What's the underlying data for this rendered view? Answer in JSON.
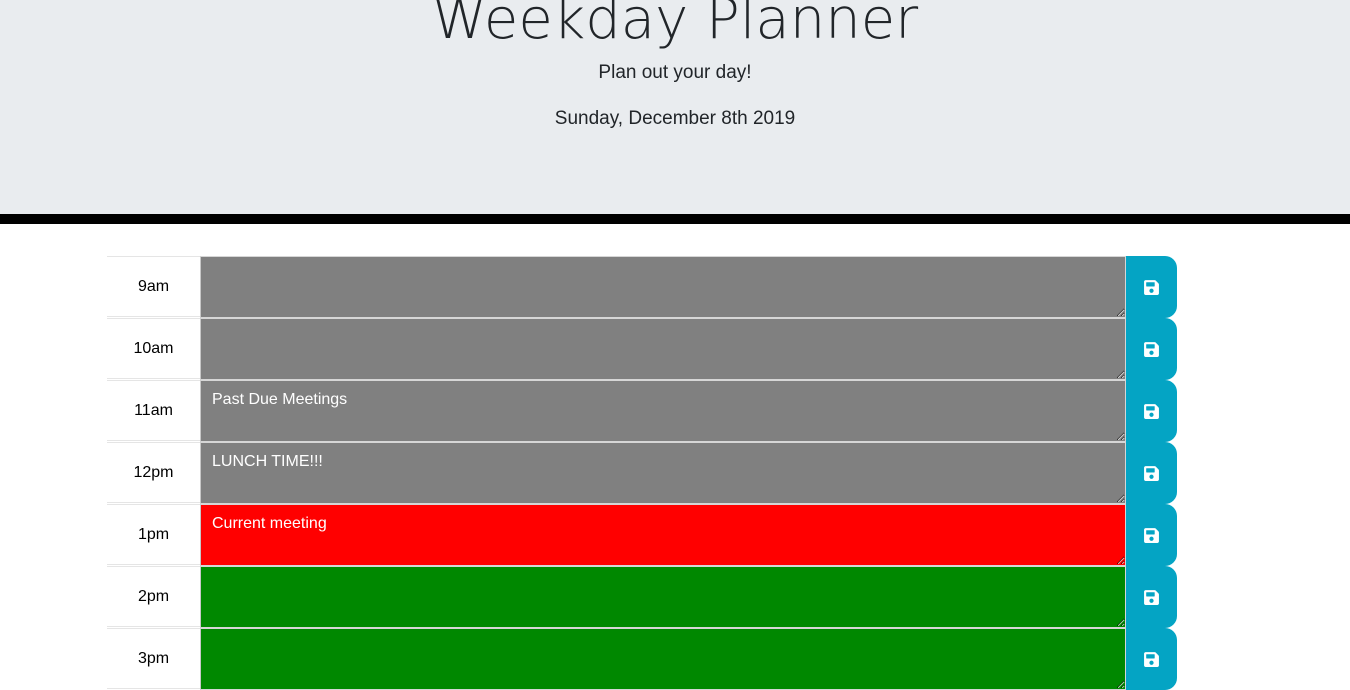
{
  "header": {
    "title": "Weekday Planner",
    "tagline": "Plan out your day!",
    "current_day": "Sunday, December 8th 2019"
  },
  "colors": {
    "past": "#808080",
    "present": "#ff0000",
    "future": "#008800",
    "save_button": "#04a4c4",
    "header_bg": "#e9ecef"
  },
  "time_blocks": [
    {
      "hour": "9am",
      "text": "",
      "status": "past",
      "icon": "save-icon"
    },
    {
      "hour": "10am",
      "text": "",
      "status": "past",
      "icon": "save-icon"
    },
    {
      "hour": "11am",
      "text": "Past Due Meetings",
      "status": "past",
      "icon": "save-icon"
    },
    {
      "hour": "12pm",
      "text": "LUNCH TIME!!!",
      "status": "past",
      "icon": "save-icon"
    },
    {
      "hour": "1pm",
      "text": "Current meeting",
      "status": "present",
      "icon": "save-icon"
    },
    {
      "hour": "2pm",
      "text": "",
      "status": "future",
      "icon": "save-icon"
    },
    {
      "hour": "3pm",
      "text": "",
      "status": "future",
      "icon": "save-icon"
    }
  ]
}
